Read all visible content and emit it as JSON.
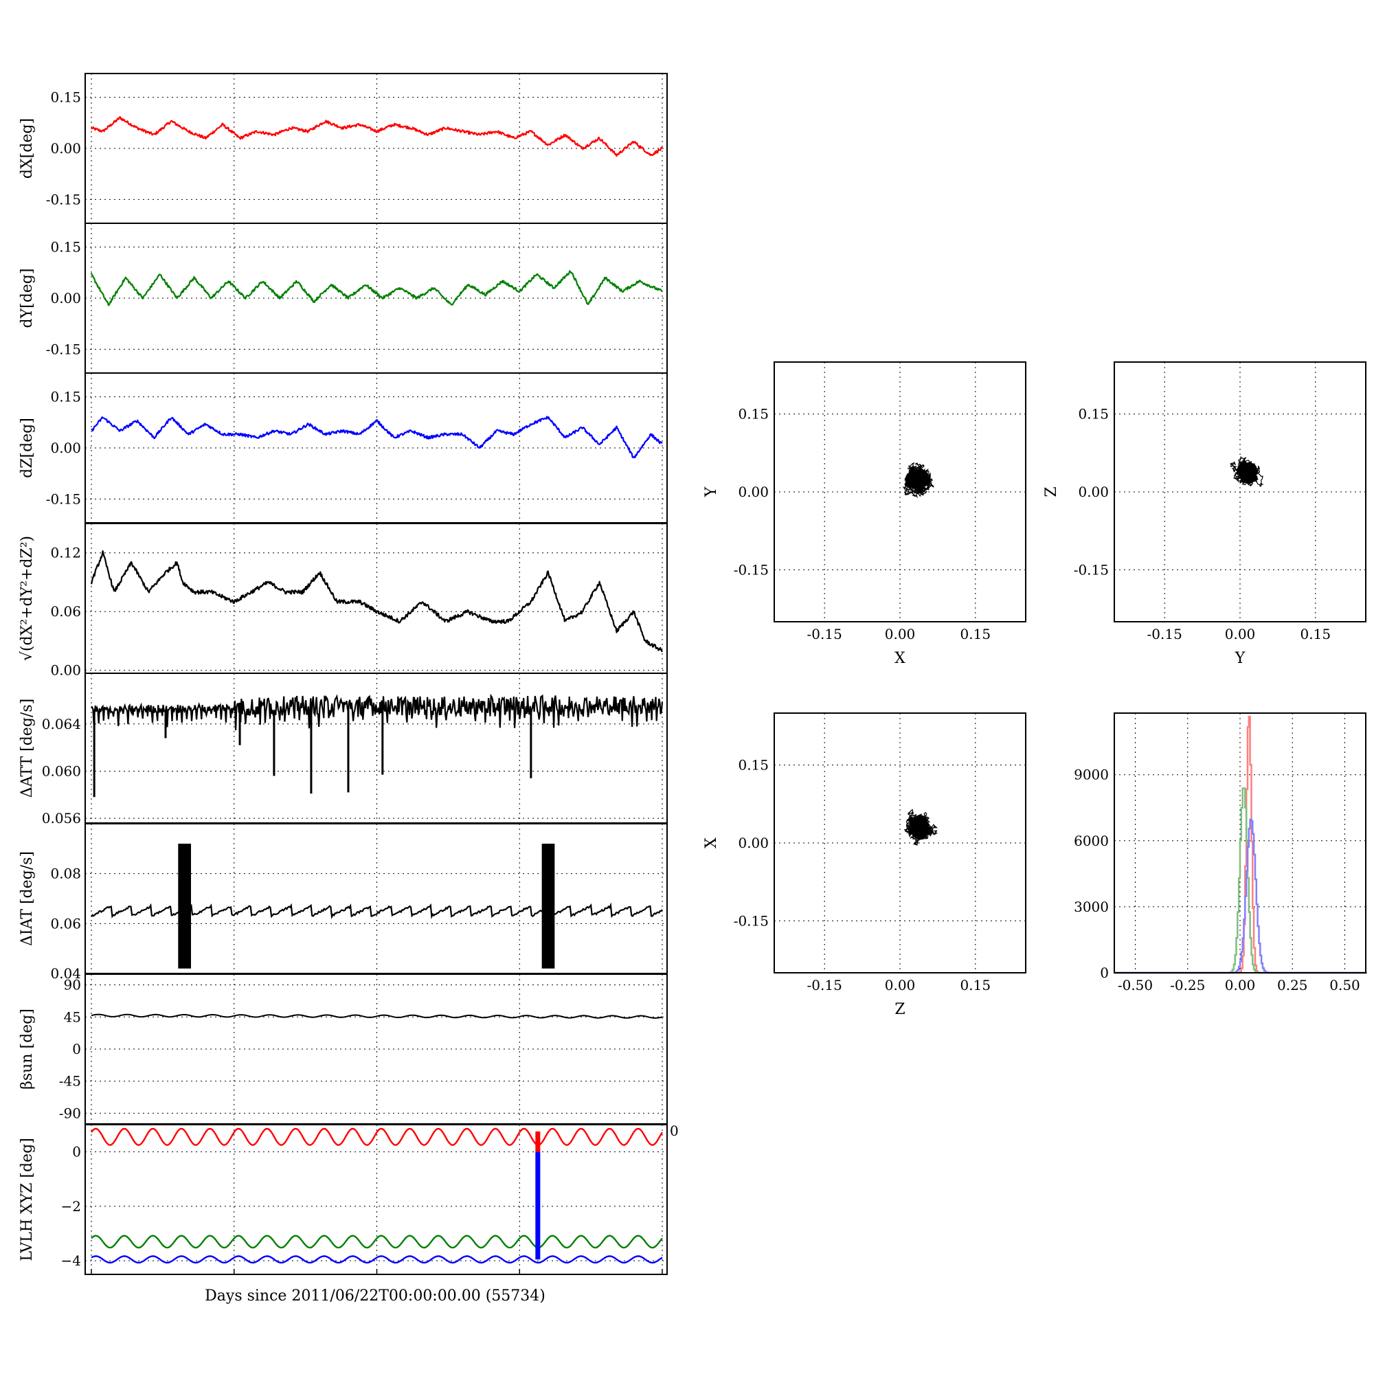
{
  "figure": {
    "xlabel": "Days since 2011/06/22T00:00:00.00 (55734)"
  },
  "colors": {
    "x_series": "#ff0000",
    "y_series": "#008000",
    "z_series": "#0000ff",
    "norm_series": "#000000",
    "hist_x": "#ff8080",
    "hist_y": "#7fbf7f",
    "hist_z": "#8080ff"
  },
  "chart_data": [
    {
      "id": "dX",
      "type": "line",
      "ylabel": "dX[deg]",
      "color": "#ff0000",
      "ylim": [
        -0.22,
        0.22
      ],
      "yticks": [
        "0.15",
        "0.00",
        "-0.15"
      ],
      "ytick_values": [
        0.15,
        0.0,
        -0.15
      ],
      "x": [
        0,
        2,
        5,
        8,
        11,
        14,
        17,
        20,
        23,
        26,
        29,
        32,
        35,
        38,
        41,
        44,
        47,
        50,
        53,
        56,
        59,
        62,
        65,
        68,
        71,
        74,
        77,
        80,
        83,
        86,
        89,
        92,
        95,
        98,
        100
      ],
      "values": [
        0.06,
        0.05,
        0.09,
        0.06,
        0.04,
        0.08,
        0.05,
        0.03,
        0.07,
        0.03,
        0.05,
        0.04,
        0.06,
        0.05,
        0.08,
        0.06,
        0.07,
        0.05,
        0.07,
        0.06,
        0.04,
        0.06,
        0.05,
        0.04,
        0.05,
        0.03,
        0.05,
        0.01,
        0.04,
        0.0,
        0.03,
        -0.02,
        0.02,
        -0.02,
        0.0
      ]
    },
    {
      "id": "dY",
      "type": "line",
      "ylabel": "dY[deg]",
      "color": "#008000",
      "ylim": [
        -0.22,
        0.22
      ],
      "yticks": [
        "0.15",
        "0.00",
        "-0.15"
      ],
      "ytick_values": [
        0.15,
        0.0,
        -0.15
      ],
      "x": [
        0,
        3,
        6,
        9,
        12,
        15,
        18,
        21,
        24,
        27,
        30,
        33,
        36,
        39,
        42,
        45,
        48,
        51,
        54,
        57,
        60,
        63,
        66,
        69,
        72,
        75,
        78,
        81,
        84,
        87,
        90,
        93,
        96,
        100
      ],
      "values": [
        0.07,
        -0.02,
        0.06,
        0.0,
        0.07,
        0.0,
        0.06,
        0.0,
        0.05,
        0.0,
        0.05,
        0.0,
        0.05,
        -0.01,
        0.04,
        0.0,
        0.04,
        0.0,
        0.03,
        0.0,
        0.03,
        -0.02,
        0.04,
        0.01,
        0.05,
        0.02,
        0.07,
        0.03,
        0.08,
        -0.02,
        0.06,
        0.02,
        0.05,
        0.02
      ]
    },
    {
      "id": "dZ",
      "type": "line",
      "ylabel": "dZ[deg]",
      "color": "#0000ff",
      "ylim": [
        -0.22,
        0.22
      ],
      "yticks": [
        "0.15",
        "0.00",
        "-0.15"
      ],
      "ytick_values": [
        0.15,
        0.0,
        -0.15
      ],
      "x": [
        0,
        2,
        5,
        8,
        11,
        14,
        17,
        20,
        23,
        26,
        29,
        32,
        35,
        38,
        41,
        44,
        47,
        50,
        53,
        56,
        59,
        62,
        65,
        68,
        71,
        74,
        77,
        80,
        83,
        86,
        89,
        92,
        95,
        98,
        100
      ],
      "values": [
        0.05,
        0.09,
        0.05,
        0.08,
        0.03,
        0.09,
        0.04,
        0.07,
        0.04,
        0.04,
        0.03,
        0.05,
        0.04,
        0.07,
        0.04,
        0.05,
        0.04,
        0.08,
        0.03,
        0.05,
        0.03,
        0.04,
        0.04,
        0.0,
        0.05,
        0.04,
        0.07,
        0.09,
        0.03,
        0.06,
        0.01,
        0.06,
        -0.03,
        0.04,
        0.01
      ]
    },
    {
      "id": "norm",
      "type": "line",
      "ylabel": "√(dX²+dY²+dZ²)",
      "color": "#000000",
      "ylim": [
        -0.003,
        0.15
      ],
      "yticks": [
        "0.12",
        "0.06",
        "0.00"
      ],
      "ytick_values": [
        0.12,
        0.06,
        0.0
      ],
      "x": [
        0,
        2,
        4,
        7,
        10,
        13,
        15,
        16,
        18,
        21,
        25,
        28,
        31,
        34,
        37,
        40,
        43,
        45,
        47,
        50,
        54,
        58,
        62,
        66,
        70,
        73,
        77,
        80,
        83,
        86,
        89,
        92,
        95,
        97,
        100
      ],
      "values": [
        0.09,
        0.12,
        0.08,
        0.11,
        0.08,
        0.1,
        0.11,
        0.09,
        0.08,
        0.08,
        0.07,
        0.08,
        0.09,
        0.08,
        0.08,
        0.1,
        0.07,
        0.07,
        0.07,
        0.06,
        0.05,
        0.07,
        0.05,
        0.06,
        0.05,
        0.05,
        0.07,
        0.1,
        0.05,
        0.06,
        0.09,
        0.04,
        0.06,
        0.03,
        0.02
      ]
    },
    {
      "id": "dATT",
      "type": "line",
      "ylabel": "ΔATT [deg/s]",
      "color": "#000000",
      "ylim": [
        0.0556,
        0.0683
      ],
      "yticks": [
        "0.064",
        "0.060",
        "0.056"
      ],
      "ytick_values": [
        0.064,
        0.06,
        0.056
      ],
      "x": [
        0,
        12.5,
        25,
        37.5,
        50,
        62.5,
        75,
        87.5,
        100
      ],
      "values": [
        0.0652,
        0.0653,
        0.0654,
        0.0656,
        0.0656,
        0.0655,
        0.0656,
        0.0656,
        0.0656
      ],
      "dips": [
        [
          0.5,
          0.0578
        ],
        [
          13,
          0.0628
        ],
        [
          26,
          0.0622
        ],
        [
          32,
          0.0596
        ],
        [
          38.5,
          0.0581
        ],
        [
          45,
          0.0582
        ],
        [
          51,
          0.0597
        ],
        [
          77,
          0.0594
        ]
      ]
    },
    {
      "id": "dIAT",
      "type": "line",
      "ylabel": "ΔIAT [deg/s]",
      "color": "#000000",
      "ylim": [
        0.04,
        0.1
      ],
      "yticks": [
        "0.08",
        "0.06",
        "0.04"
      ],
      "ytick_values": [
        0.08,
        0.06,
        0.04
      ],
      "x": [
        0,
        100
      ],
      "values": [
        0.0655,
        0.0655
      ],
      "bursts": [
        [
          15.5,
          0.042,
          0.092
        ],
        [
          79.2,
          0.042,
          0.092
        ]
      ]
    },
    {
      "id": "beta",
      "type": "line",
      "ylabel": "βsun [deg]",
      "color": "#000000",
      "ylim": [
        -105,
        105
      ],
      "yticks": [
        "90",
        "45",
        "0",
        "-45",
        "-90"
      ],
      "ytick_values": [
        90,
        45,
        0,
        -45,
        -90
      ],
      "x": [
        0,
        100
      ],
      "values": [
        47,
        45
      ]
    },
    {
      "id": "lvlh",
      "type": "line",
      "ylabel": "LVLH XYZ [deg]",
      "xlabel": "Days since 2011/06/22T00:00:00.00 (55734)",
      "ylim": [
        -4.5,
        1.0
      ],
      "yticks": [
        "0",
        "−2",
        "−4"
      ],
      "ytick_values": [
        0,
        -2,
        -4
      ],
      "right_tick": "0",
      "series": [
        {
          "color": "#ff0000",
          "mean": 0.55,
          "amp": 0.3,
          "cycles": 20
        },
        {
          "color": "#008000",
          "mean": -3.3,
          "amp": 0.22,
          "cycles": 20
        },
        {
          "color": "#0000ff",
          "mean": -3.95,
          "amp": 0.12,
          "cycles": 20
        }
      ],
      "event_x": 78.2,
      "event_top": 0.75,
      "event_bottom": -3.95
    },
    {
      "id": "scatter_xy",
      "type": "scatter",
      "xlabel": "X",
      "ylabel": "Y",
      "color": "#000000",
      "xlim": [
        -0.25,
        0.25
      ],
      "ylim": [
        -0.25,
        0.25
      ],
      "ticks": [
        "-0.15",
        "0.00",
        "0.15"
      ],
      "tick_values": [
        -0.15,
        0.0,
        0.15
      ],
      "center": [
        0.035,
        0.025
      ],
      "spread": [
        0.03,
        0.022
      ]
    },
    {
      "id": "scatter_yz",
      "type": "scatter",
      "xlabel": "Y",
      "ylabel": "Z",
      "color": "#000000",
      "xlim": [
        -0.25,
        0.25
      ],
      "ylim": [
        -0.25,
        0.25
      ],
      "ticks": [
        "-0.15",
        "0.00",
        "0.15"
      ],
      "tick_values": [
        -0.15,
        0.0,
        0.15
      ],
      "center": [
        0.015,
        0.04
      ],
      "spread": [
        0.025,
        0.02
      ]
    },
    {
      "id": "scatter_zx",
      "type": "scatter",
      "xlabel": "Z",
      "ylabel": "X",
      "color": "#000000",
      "xlim": [
        -0.25,
        0.25
      ],
      "ylim": [
        -0.25,
        0.25
      ],
      "ticks": [
        "-0.15",
        "0.00",
        "0.15"
      ],
      "tick_values": [
        -0.15,
        0.0,
        0.15
      ],
      "center": [
        0.04,
        0.03
      ],
      "spread": [
        0.022,
        0.03
      ]
    },
    {
      "id": "histogram",
      "type": "bar",
      "xlim": [
        -0.6,
        0.6
      ],
      "ylim": [
        0,
        11800
      ],
      "xticks": [
        "-0.50",
        "-0.25",
        "0.00",
        "0.25",
        "0.50"
      ],
      "xtick_values": [
        -0.5,
        -0.25,
        0.0,
        0.25,
        0.5
      ],
      "yticks": [
        "9000",
        "6000",
        "3000",
        "0"
      ],
      "ytick_values": [
        9000,
        6000,
        3000,
        0
      ],
      "series": [
        {
          "color": "#ff8080",
          "peak_x": 0.04,
          "peak": 11800,
          "width": 0.012
        },
        {
          "color": "#7fbf7f",
          "peak_x": 0.015,
          "peak": 8500,
          "width": 0.018
        },
        {
          "color": "#8080ff",
          "peak_x": 0.05,
          "peak": 7000,
          "width": 0.022
        }
      ]
    }
  ]
}
